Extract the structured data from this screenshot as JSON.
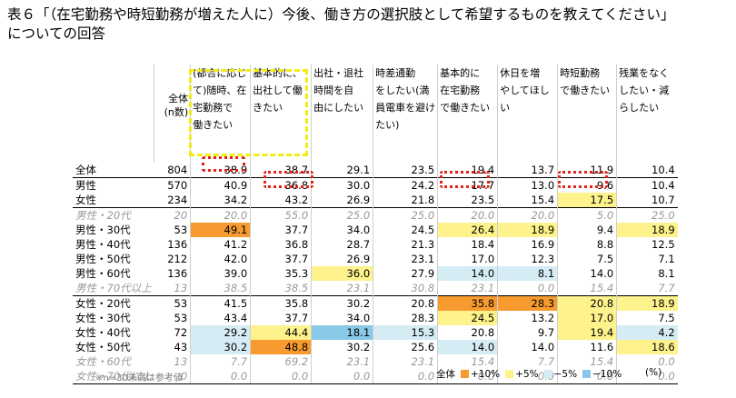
{
  "title": {
    "line1": "表６「（在宅勤務や時短勤務が増えた人に）今後、働き方の選択肢として希望するものを教えてください」",
    "line2": "についての回答"
  },
  "table": {
    "total_header": [
      "全体",
      "(n数)"
    ],
    "columns": [
      [
        "(都合に応じ",
        "て)随時、在",
        "宅勤務で",
        "働きたい"
      ],
      [
        "基本的に、",
        "出社して働",
        "きたい"
      ],
      [
        "出社・退社",
        "時間を自",
        "由にしたい"
      ],
      [
        "時差通勤",
        "をしたい(満",
        "員電車を避け",
        "たい)"
      ],
      [
        "基本的に",
        "在宅勤務",
        "で働きたい"
      ],
      [
        "休日を増",
        "やしてほし",
        "い"
      ],
      [
        "時短勤務",
        "で働きたい"
      ],
      [
        "残業をなく",
        "したい・減",
        "らしたい"
      ]
    ],
    "rows": [
      {
        "label": "全体",
        "n": "804",
        "values": [
          "38.9",
          "38.7",
          "29.1",
          "23.5",
          "19.4",
          "13.7",
          "11.9",
          "10.4"
        ],
        "colors": [
          "",
          "",
          "",
          "",
          "",
          "",
          "",
          ""
        ],
        "ref": false,
        "sep": false
      },
      {
        "label": "男性",
        "n": "570",
        "values": [
          "40.9",
          "36.8",
          "30.0",
          "24.2",
          "17.7",
          "13.0",
          "9.6",
          "10.4"
        ],
        "colors": [
          "",
          "",
          "",
          "",
          "",
          "",
          "",
          ""
        ],
        "ref": false,
        "sep": true
      },
      {
        "label": "女性",
        "n": "234",
        "values": [
          "34.2",
          "43.2",
          "26.9",
          "21.8",
          "23.5",
          "15.4",
          "17.5",
          "10.7"
        ],
        "colors": [
          "",
          "",
          "",
          "",
          "",
          "",
          "y",
          ""
        ],
        "ref": false,
        "sep": false
      },
      {
        "label": "男性・20代",
        "n": "20",
        "values": [
          "20.0",
          "55.0",
          "25.0",
          "25.0",
          "20.0",
          "20.0",
          "5.0",
          "25.0"
        ],
        "colors": [
          "",
          "",
          "",
          "",
          "",
          "",
          "",
          ""
        ],
        "ref": true,
        "sep": true
      },
      {
        "label": "男性・30代",
        "n": "53",
        "values": [
          "49.1",
          "37.7",
          "34.0",
          "24.5",
          "26.4",
          "18.9",
          "9.4",
          "18.9"
        ],
        "colors": [
          "o",
          "",
          "",
          "",
          "y",
          "y",
          "",
          "y"
        ],
        "ref": false,
        "sep": false
      },
      {
        "label": "男性・40代",
        "n": "136",
        "values": [
          "41.2",
          "36.8",
          "28.7",
          "21.3",
          "18.4",
          "16.9",
          "8.8",
          "12.5"
        ],
        "colors": [
          "",
          "",
          "",
          "",
          "",
          "",
          "",
          ""
        ],
        "ref": false,
        "sep": false
      },
      {
        "label": "男性・50代",
        "n": "212",
        "values": [
          "42.0",
          "37.7",
          "26.9",
          "23.1",
          "17.0",
          "12.3",
          "7.5",
          "7.1"
        ],
        "colors": [
          "",
          "",
          "",
          "",
          "",
          "",
          "",
          ""
        ],
        "ref": false,
        "sep": false
      },
      {
        "label": "男性・60代",
        "n": "136",
        "values": [
          "39.0",
          "35.3",
          "36.0",
          "27.9",
          "14.0",
          "8.1",
          "14.0",
          "8.1"
        ],
        "colors": [
          "",
          "",
          "y",
          "",
          "l",
          "l",
          "",
          ""
        ],
        "ref": false,
        "sep": false
      },
      {
        "label": "男性・70代以上",
        "n": "13",
        "values": [
          "38.5",
          "38.5",
          "23.1",
          "30.8",
          "23.1",
          "0.0",
          "15.4",
          "7.7"
        ],
        "colors": [
          "",
          "",
          "",
          "",
          "",
          "",
          "",
          ""
        ],
        "ref": true,
        "sep": false
      },
      {
        "label": "女性・20代",
        "n": "53",
        "values": [
          "41.5",
          "35.8",
          "30.2",
          "20.8",
          "35.8",
          "28.3",
          "20.8",
          "18.9"
        ],
        "colors": [
          "",
          "",
          "",
          "",
          "o",
          "o",
          "y",
          "y"
        ],
        "ref": false,
        "sep": true
      },
      {
        "label": "女性・30代",
        "n": "53",
        "values": [
          "43.4",
          "37.7",
          "34.0",
          "28.3",
          "24.5",
          "13.2",
          "17.0",
          "7.5"
        ],
        "colors": [
          "",
          "",
          "",
          "",
          "y",
          "",
          "y",
          ""
        ],
        "ref": false,
        "sep": false
      },
      {
        "label": "女性・40代",
        "n": "72",
        "values": [
          "29.2",
          "44.4",
          "18.1",
          "15.3",
          "20.8",
          "9.7",
          "19.4",
          "4.2"
        ],
        "colors": [
          "l",
          "y",
          "b",
          "l",
          "",
          "",
          "y",
          "l"
        ],
        "ref": false,
        "sep": false
      },
      {
        "label": "女性・50代",
        "n": "43",
        "values": [
          "30.2",
          "48.8",
          "30.2",
          "25.6",
          "14.0",
          "14.0",
          "11.6",
          "18.6"
        ],
        "colors": [
          "l",
          "o",
          "",
          "",
          "l",
          "",
          "",
          "y"
        ],
        "ref": false,
        "sep": false
      },
      {
        "label": "女性・60代",
        "n": "13",
        "values": [
          "7.7",
          "69.2",
          "23.1",
          "23.1",
          "15.4",
          "7.7",
          "15.4",
          "0.0"
        ],
        "colors": [
          "",
          "",
          "",
          "",
          "",
          "",
          "",
          ""
        ],
        "ref": true,
        "sep": false
      },
      {
        "label": "女性・70代以上",
        "n": "0",
        "values": [
          "0.0",
          "0.0",
          "0.0",
          "0.0",
          "0.0",
          "0.0",
          "0.0",
          "0.0"
        ],
        "colors": [
          "",
          "",
          "",
          "",
          "",
          "",
          "",
          ""
        ],
        "ref": true,
        "sep": false
      }
    ]
  },
  "footnote": "※n=30未満は参考値",
  "legend": {
    "prefix": "全体",
    "items": [
      {
        "label": "+10%",
        "color": "#f79a2f"
      },
      {
        "label": "+5%",
        "color": "#fdf28b"
      },
      {
        "label": "−5%",
        "color": "#d6ecf5"
      },
      {
        "label": "−10%",
        "color": "#89c8e6"
      }
    ],
    "unit": "(%)"
  }
}
